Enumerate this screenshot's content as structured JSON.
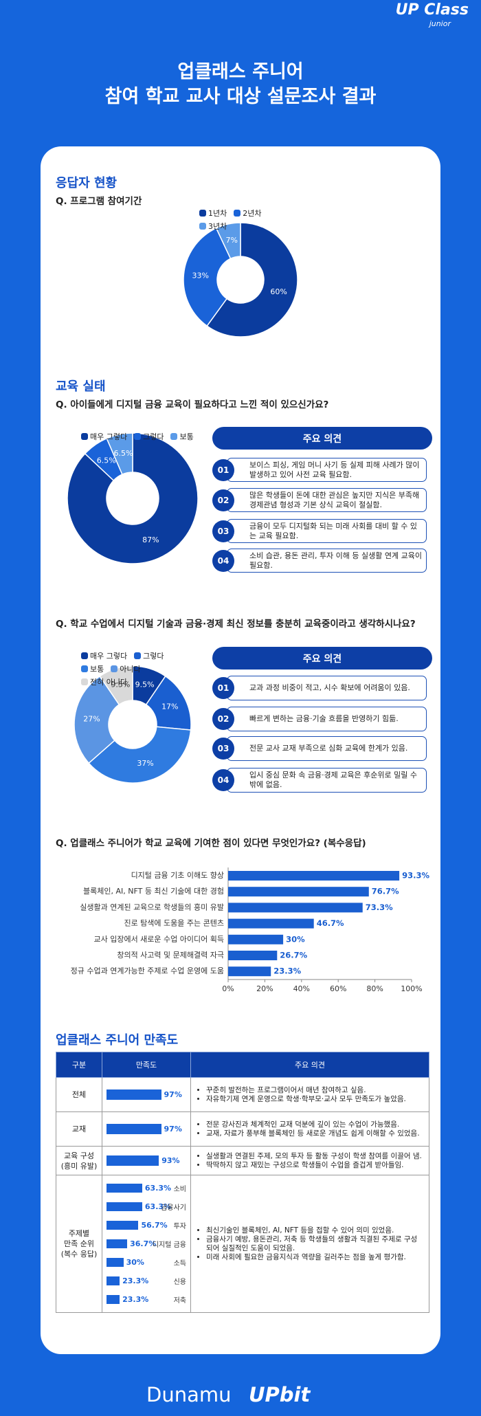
{
  "header": {
    "logo": "UP Class",
    "logo_sub": "junior",
    "title_line1": "업클래스 주니어",
    "title_line2": "참여 학교 교사 대상 설문조사 결과"
  },
  "respondents": {
    "heading": "응답자 현황"
  },
  "education": {
    "heading": "교육 실태"
  },
  "chart_data": [
    {
      "type": "pie",
      "title": "Q. 프로그램 참여기간",
      "categories": [
        "1년차",
        "2년차",
        "3년차"
      ],
      "values": [
        60,
        33,
        7
      ],
      "value_labels": [
        "60%",
        "33%",
        "7%"
      ],
      "colors": [
        "#0b3c9e",
        "#1a63d8",
        "#5b9be8"
      ]
    },
    {
      "type": "pie",
      "title": "Q. 아이들에게 디지털 금융 교육이 필요하다고 느낀 적이 있으신가요?",
      "categories": [
        "매우 그렇다",
        "그렇다",
        "보통"
      ],
      "values": [
        87,
        6.5,
        6.5
      ],
      "value_labels": [
        "87%",
        "6.5%",
        "6.5%"
      ],
      "colors": [
        "#0b3c9e",
        "#1a63d8",
        "#5b9be8"
      ]
    },
    {
      "type": "pie",
      "title": "Q. 학교 수업에서 디지털 기술과 금융·경제 최신 정보를 충분히 교육중이라고 생각하시나요?",
      "categories": [
        "매우 그렇다",
        "그렇다",
        "보통",
        "아니다",
        "전혀 아니다"
      ],
      "values": [
        9.5,
        17,
        37,
        27,
        9.5
      ],
      "value_labels": [
        "9.5%",
        "17%",
        "37%",
        "27%",
        "9.5%"
      ],
      "colors": [
        "#0b3c9e",
        "#1a5fd0",
        "#2f7be0",
        "#5b95e3",
        "#d9d9d9"
      ]
    },
    {
      "type": "bar",
      "title": "Q. 업클래스 주니어가 학교 교육에 기여한 점이 있다면 무엇인가요? (복수응답)",
      "categories": [
        "디지털 금융 기초 이해도 향상",
        "블록체인, AI, NFT 등 최신 기술에 대한 경험",
        "실생활과 연계된 교육으로 학생들의 흥미 유발",
        "진로 탐색에 도움을 주는 콘텐츠",
        "교사 입장에서 새로운 수업 아이디어 획득",
        "창의적 사고력 및 문제해결력 자극",
        "정규 수업과 연계가능한 주제로 수업 운영에 도움"
      ],
      "values": [
        93.3,
        76.7,
        73.3,
        46.7,
        30,
        26.7,
        23.3
      ],
      "value_labels": [
        "93.3%",
        "76.7%",
        "73.3%",
        "46.7%",
        "30%",
        "26.7%",
        "23.3%"
      ],
      "color": "#1a5fd0",
      "xlim": [
        0,
        100
      ],
      "xticks": [
        {
          "value": 0,
          "label": "0%"
        },
        {
          "value": 20,
          "label": "20%"
        },
        {
          "value": 40,
          "label": "40%"
        },
        {
          "value": 60,
          "label": "60%"
        },
        {
          "value": 80,
          "label": "80%"
        },
        {
          "value": 100,
          "label": "100%"
        }
      ]
    }
  ],
  "opinions": [
    {
      "title": "주요 의견",
      "items": [
        {
          "no": "01",
          "text": "보이스 피싱, 게임 머니 사기 등 실제 피해 사례가 많이 발생하고 있어 사전 교육 필요함."
        },
        {
          "no": "02",
          "text": "많은 학생들이 돈에 대한 관심은 높지만 지식은 부족해 경제관념 형성과 기본 상식 교육이 절실함."
        },
        {
          "no": "03",
          "text": "금융이 모두 디지털화 되는 미래 사회를 대비 할 수 있는 교육 필요함."
        },
        {
          "no": "04",
          "text": "소비 습관, 용돈 관리, 투자 이해 등 실생활 연계 교육이 필요함."
        }
      ]
    },
    {
      "title": "주요 의견",
      "items": [
        {
          "no": "01",
          "text": "교과 과정 비중이 적고, 시수 확보에 어려움이 있음."
        },
        {
          "no": "02",
          "text": "빠르게 변하는 금융·기술 흐름을 반영하기 힘듦."
        },
        {
          "no": "03",
          "text": "전문 교사 교재 부족으로 심화 교육에 한계가 있음."
        },
        {
          "no": "04",
          "text": "입시 중심 문화 속 금융·경제 교육은 후순위로 밀릴 수밖에 없음."
        }
      ]
    }
  ],
  "satisfaction": {
    "heading": "업클래스 주니어 만족도",
    "headers": [
      "구분",
      "만족도",
      "주요 의견"
    ],
    "xlim": [
      0,
      100
    ],
    "rows": [
      {
        "label": [
          "전체"
        ],
        "value": 97,
        "value_label": "97%",
        "comments": [
          "꾸준히 발전하는 프로그램이어서 매년 참여하고 싶음.",
          "자유학기제 연계 운영으로 학생·학부모·교사 모두 만족도가 높았음."
        ]
      },
      {
        "label": [
          "교재"
        ],
        "value": 97,
        "value_label": "97%",
        "comments": [
          "전문 강사진과 체계적인 교재 덕분에 깊이 있는 수업이 가능했음.",
          "교재, 자료가 풍부해 블록체인 등 새로운 개념도 쉽게 이해할 수 있었음."
        ]
      },
      {
        "label": [
          "교육 구성",
          "(흥미 유발)"
        ],
        "value": 93,
        "value_label": "93%",
        "comments": [
          "실생활과 연결된 주제, 모의 투자 등 활동 구성이 학생 참여를 이끌어 냄.",
          "딱딱하지 않고 재밌는 구성으로 학생들이 수업을 즐겁게 받아들임."
        ]
      },
      {
        "label": [
          "주제별",
          "만족 순위",
          "(복수 응답)"
        ],
        "topics": [
          {
            "name": "소비",
            "value": 63.3,
            "value_label": "63.3%"
          },
          {
            "name": "금융사기",
            "value": 63.3,
            "value_label": "63.3%"
          },
          {
            "name": "투자",
            "value": 56.7,
            "value_label": "56.7%"
          },
          {
            "name": "디지털 금융",
            "value": 36.7,
            "value_label": "36.7%"
          },
          {
            "name": "소득",
            "value": 30,
            "value_label": "30%"
          },
          {
            "name": "신용",
            "value": 23.3,
            "value_label": "23.3%"
          },
          {
            "name": "저축",
            "value": 23.3,
            "value_label": "23.3%"
          }
        ],
        "comments": [
          "최신기술인 블록체인, AI, NFT 등을 접할 수 있어 의미 있었음.",
          "금융사기 예방, 용돈관리, 저축 등 학생들의 생활과 직결된 주제로 구성되어 실질적인 도움이 되었음.",
          "미래 사회에 필요한 금융지식과 역량을 길러주는 점을 높게 평가함."
        ]
      }
    ]
  },
  "footer": {
    "left": "Dunamu",
    "right": "UPbit"
  }
}
